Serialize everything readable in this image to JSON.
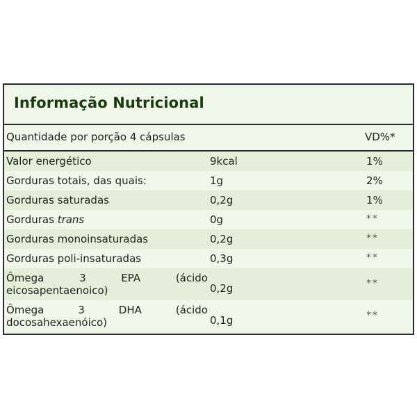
{
  "title": "Informação Nutricional",
  "header": {
    "serving": "Quantidade por porção 4 cápsulas",
    "dv": "VD%*"
  },
  "rows": [
    {
      "name": "Valor energético",
      "amount": "9kcal",
      "dv": "1%"
    },
    {
      "name": "Gorduras totais, das quais:",
      "amount": "1g",
      "dv": "2%"
    },
    {
      "name": "Gorduras saturadas",
      "amount": "0,2g",
      "dv": "1%"
    },
    {
      "name_prefix": "Gorduras",
      "name_italic": "trans",
      "amount": "0g",
      "dv": "**"
    },
    {
      "name": "Gorduras monoinsaturadas",
      "amount": "0,2g",
      "dv": "**"
    },
    {
      "name": "Gorduras poli-insaturadas",
      "amount": "0,3g",
      "dv": "**"
    },
    {
      "name_words": [
        "Ômega",
        "3",
        "EPA",
        "(ácido"
      ],
      "name_line2": "eicosapentaenoico)",
      "amount": "0,2g",
      "dv": "**"
    },
    {
      "name_words": [
        "Ômega",
        "3",
        "DHA",
        "(ácido"
      ],
      "name_line2": "docosahexaenóico)",
      "amount": "0,1g",
      "dv": "**"
    }
  ],
  "colors": {
    "title": "#1c3a10",
    "row_dark": "#e4eed9",
    "row_light": "#f0f7ea",
    "border": "#2a2a2a"
  }
}
